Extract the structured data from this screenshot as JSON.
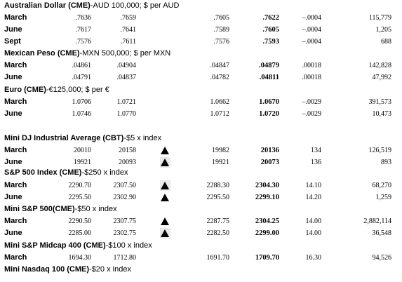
{
  "sections": [
    {
      "header": {
        "name": "Australian Dollar (CME)",
        "spec": "-AUD 100,000; $ per AUD"
      },
      "rows": [
        {
          "month": "March",
          "open": ".7636",
          "high": ".7659",
          "trend": "",
          "low": ".7605",
          "settle": ".7622",
          "chg": "–.0004",
          "oi": "115,779"
        },
        {
          "month": "June",
          "open": ".7617",
          "high": ".7641",
          "trend": "",
          "low": ".7589",
          "settle": ".7605",
          "chg": "–.0004",
          "oi": "1,205"
        },
        {
          "month": "Sept",
          "open": ".7576",
          "high": ".7611",
          "trend": "",
          "low": ".7576",
          "settle": ".7593",
          "chg": "–.0004",
          "oi": "688"
        }
      ]
    },
    {
      "header": {
        "name": "Mexican Peso (CME)",
        "spec": "-MXN 500,000; $ per MXN"
      },
      "rows": [
        {
          "month": "March",
          "open": ".04861",
          "high": ".04904",
          "trend": "",
          "low": ".04847",
          "settle": ".04879",
          "chg": ".00018",
          "oi": "142,828"
        },
        {
          "month": "June",
          "open": ".04791",
          "high": ".04837",
          "trend": "",
          "low": ".04782",
          "settle": ".04811",
          "chg": ".00018",
          "oi": "47,992"
        }
      ]
    },
    {
      "header": {
        "name": "Euro (CME)",
        "spec": "-€125,000; $ per €"
      },
      "rows": [
        {
          "month": "March",
          "open": "1.0706",
          "high": "1.0721",
          "trend": "",
          "low": "1.0662",
          "settle": "1.0670",
          "chg": "–.0029",
          "oi": "391,573"
        },
        {
          "month": "June",
          "open": "1.0746",
          "high": "1.0770",
          "trend": "",
          "low": "1.0712",
          "settle": "1.0720",
          "chg": "–.0029",
          "oi": "10,473"
        }
      ]
    },
    {
      "header": {
        "name": "Mini DJ Industrial Average (CBT)",
        "spec": "-$5 x index"
      },
      "rows": [
        {
          "month": "March",
          "open": "20010",
          "high": "20158",
          "trend": "up",
          "low": "19982",
          "settle": "20136",
          "chg": "134",
          "oi": "126,519"
        },
        {
          "month": "June",
          "open": "19921",
          "high": "20093",
          "trend": "up-boxed",
          "low": "19921",
          "settle": "20073",
          "chg": "136",
          "oi": "893"
        }
      ]
    },
    {
      "header": {
        "name": "S&P 500 Index (CME)",
        "spec": "-$250 x index"
      },
      "rows": [
        {
          "month": "March",
          "open": "2290.70",
          "high": "2307.50",
          "trend": "up-boxed",
          "low": "2288.30",
          "settle": "2304.30",
          "chg": "14.10",
          "oi": "68,270"
        },
        {
          "month": "June",
          "open": "2295.50",
          "high": "2302.90",
          "trend": "up",
          "low": "2295.50",
          "settle": "2299.10",
          "chg": "14.20",
          "oi": "1,259"
        }
      ]
    },
    {
      "header": {
        "name": "Mini S&P 500(CME)",
        "spec": "-$50 x index"
      },
      "rows": [
        {
          "month": "March",
          "open": "2290.50",
          "high": "2307.75",
          "trend": "up",
          "low": "2287.75",
          "settle": "2304.25",
          "chg": "14.00",
          "oi": "2,882,114"
        },
        {
          "month": "June",
          "open": "2285.00",
          "high": "2302.75",
          "trend": "up-boxed",
          "low": "2282.50",
          "settle": "2299.00",
          "chg": "14.00",
          "oi": "36,548"
        }
      ]
    },
    {
      "header": {
        "name": "Mini S&P Midcap 400 (CME)",
        "spec": "-$100 x index"
      },
      "rows": [
        {
          "month": "March",
          "open": "1694.30",
          "high": "1712.80",
          "trend": "",
          "low": "1691.70",
          "settle": "1709.70",
          "chg": "16.30",
          "oi": "94,526"
        }
      ]
    },
    {
      "header": {
        "name": "Mini Nasdaq 100 (CME)",
        "spec": "-$20 x index"
      },
      "rows": []
    }
  ]
}
